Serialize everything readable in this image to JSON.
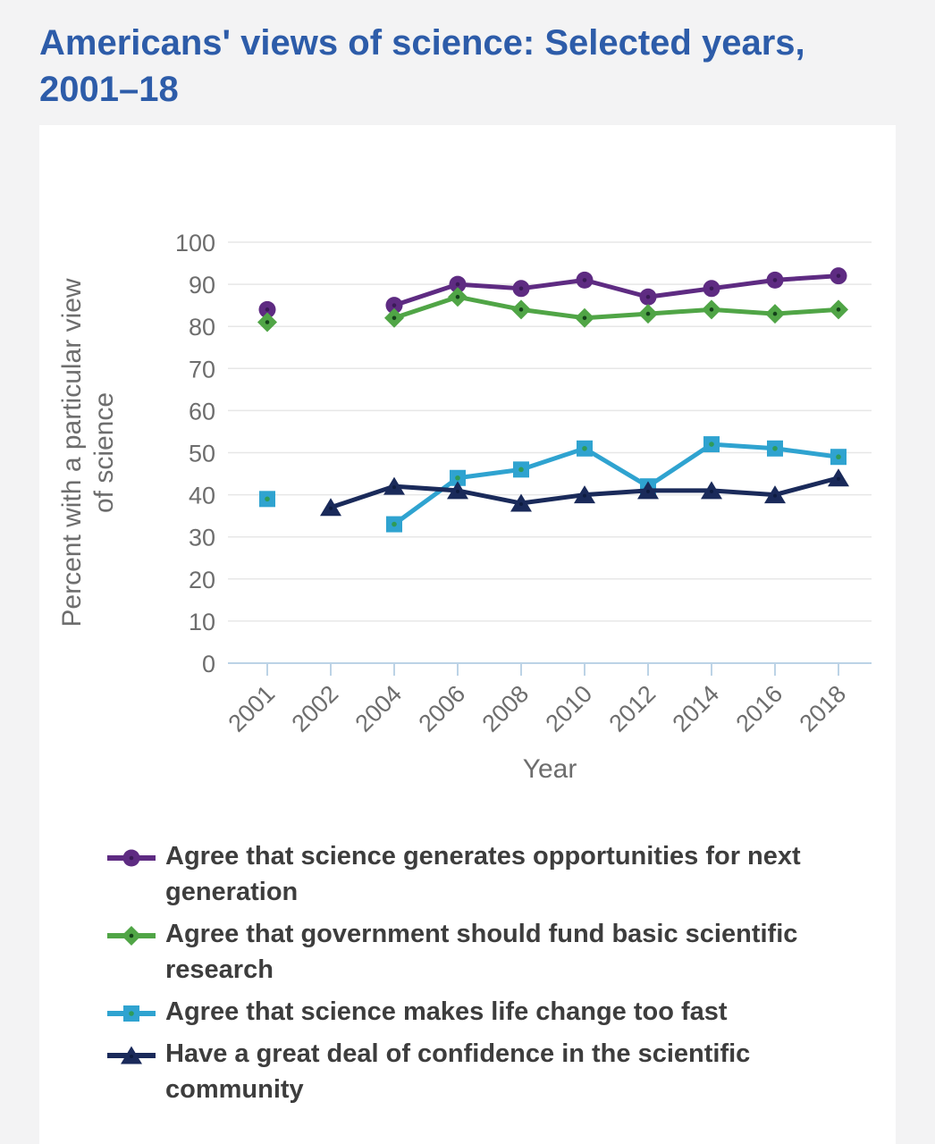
{
  "page": {
    "title": "Americans' views of science: Selected years, 2001–18"
  },
  "chart_data": {
    "type": "line",
    "title": "Americans' views of science: Selected years, 2001–18",
    "xlabel": "Year",
    "ylabel": "Percent with a particular view of science",
    "ylabel_lines": [
      "Percent with a particular view",
      "of science"
    ],
    "ylim": [
      0,
      100
    ],
    "yticks": [
      0,
      10,
      20,
      30,
      40,
      50,
      60,
      70,
      80,
      90,
      100
    ],
    "grid": true,
    "legend_position": "bottom",
    "categories": [
      "2001",
      "2002",
      "2004",
      "2006",
      "2008",
      "2010",
      "2012",
      "2014",
      "2016",
      "2018"
    ],
    "series": [
      {
        "name": "Agree that science generates opportunities for next generation",
        "marker": "circle",
        "color": "#5e2b82",
        "values": [
          84,
          null,
          85,
          90,
          89,
          91,
          87,
          89,
          91,
          92
        ]
      },
      {
        "name": "Agree that government should fund basic scientific research",
        "marker": "diamond",
        "color": "#50a546",
        "values": [
          81,
          null,
          82,
          87,
          84,
          82,
          83,
          84,
          83,
          84
        ]
      },
      {
        "name": "Agree that science makes life change too fast",
        "marker": "square",
        "color": "#2fa3d0",
        "values": [
          39,
          null,
          33,
          44,
          46,
          51,
          42,
          52,
          51,
          49
        ]
      },
      {
        "name": "Have a great deal of confidence in the scientific community",
        "marker": "triangle",
        "color": "#1a2a5a",
        "values": [
          null,
          37,
          42,
          41,
          38,
          40,
          41,
          41,
          40,
          44
        ]
      }
    ]
  },
  "colors": {
    "page_bg": "#f3f3f4",
    "card_bg": "#ffffff",
    "title": "#2d5ca9",
    "axis_text": "#6d6d6d",
    "grid": "#e7e7e7",
    "axis_line": "#bcd3e6",
    "legend_text": "#3d3d3d",
    "marker_dot_circle": "#3a1a57",
    "marker_dot_diamond": "#14421a",
    "marker_dot_square": "#2f9b58",
    "marker_dot_triangle": "#0e1c40"
  }
}
